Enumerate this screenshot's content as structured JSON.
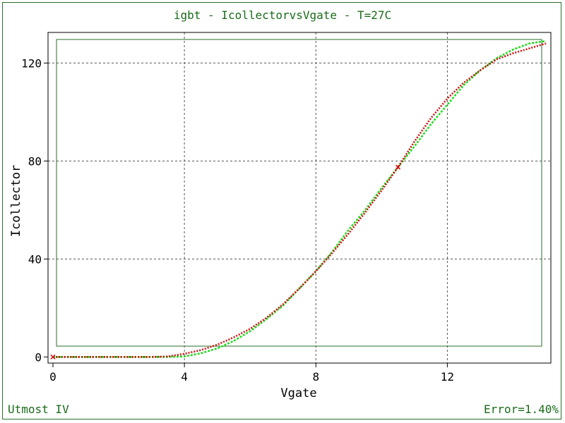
{
  "header": {
    "title": "igbt - IcollectorvsVgate - T=27C"
  },
  "footer": {
    "app_name": "Utmost IV",
    "error_text": "Error=1.40%"
  },
  "colors": {
    "measured": "#22dd22",
    "simulated": "#cc1111",
    "frame": "#2a6e2a",
    "grid": "#555555",
    "text_accent": "#1a6b1a"
  },
  "chart_data": {
    "type": "line",
    "title": "igbt - IcollectorvsVgate - T=27C",
    "xlabel": "Vgate",
    "ylabel": "Icollector",
    "xlim": [
      -0.15,
      15.15
    ],
    "ylim": [
      -2.5,
      132.5
    ],
    "xticks": [
      0,
      4,
      8,
      12
    ],
    "yticks": [
      0,
      40,
      80,
      120
    ],
    "grid": true,
    "legend": "none",
    "series": [
      {
        "name": "",
        "style": "measured",
        "x": [
          0,
          1,
          2,
          3,
          3.5,
          4,
          4.5,
          5,
          5.5,
          6,
          6.5,
          7,
          7.5,
          8,
          8.5,
          9,
          9.5,
          10,
          10.5,
          11,
          11.5,
          12,
          12.5,
          13,
          13.5,
          14,
          14.5,
          15
        ],
        "y": [
          0,
          0,
          0,
          0,
          0,
          0.2,
          1.5,
          3.5,
          6.5,
          10.5,
          15.5,
          21,
          28,
          35,
          43,
          52,
          60,
          69,
          77.5,
          86,
          95,
          103,
          111,
          117,
          122,
          125.5,
          128,
          129
        ]
      },
      {
        "name": "",
        "style": "simulated",
        "x": [
          0,
          1,
          2,
          3,
          3.5,
          4,
          4.5,
          5,
          5.5,
          6,
          6.5,
          7,
          7.5,
          8,
          8.5,
          9,
          9.5,
          10,
          10.5,
          11,
          11.5,
          12,
          12.5,
          13,
          13.5,
          14,
          14.5,
          15
        ],
        "y": [
          0,
          0,
          0,
          0,
          0.2,
          1.3,
          2.8,
          5,
          8,
          11.5,
          16,
          21.5,
          28,
          35,
          42.5,
          50.5,
          59,
          68,
          77.5,
          88,
          97.5,
          105.5,
          112,
          117,
          121.5,
          124,
          126,
          128
        ]
      }
    ]
  }
}
